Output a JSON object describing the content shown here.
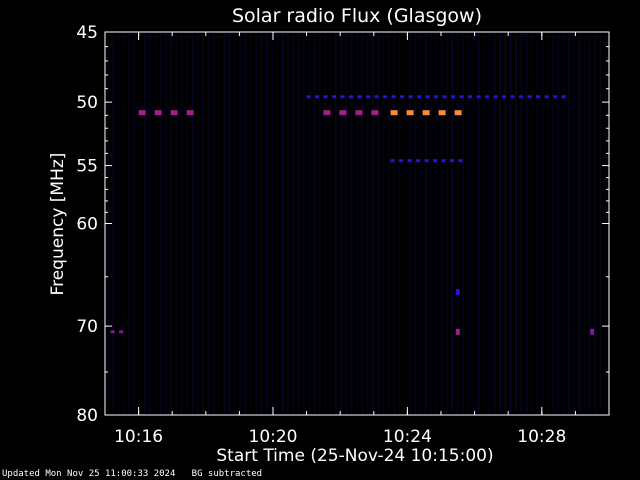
{
  "chart_data": {
    "type": "heatmap",
    "title": "Solar radio Flux (Glasgow)",
    "xlabel": "Start Time (25-Nov-24 10:15:00)",
    "ylabel": "Frequency [MHz]",
    "x_range": [
      "10:15:00",
      "10:30:00"
    ],
    "x_ticks": [
      "10:16",
      "10:20",
      "10:24",
      "10:28"
    ],
    "ylim": [
      45,
      80
    ],
    "y_scale": "log",
    "y_ticks": [
      45,
      50,
      55,
      60,
      70,
      80
    ],
    "features": [
      {
        "freq_mhz": 50.8,
        "start": "10:16:00",
        "end": "10:17:40",
        "level": "high"
      },
      {
        "freq_mhz": 50.8,
        "start": "10:21:30",
        "end": "10:23:20",
        "level": "high"
      },
      {
        "freq_mhz": 50.8,
        "start": "10:23:30",
        "end": "10:25:40",
        "level": "max"
      },
      {
        "freq_mhz": 49.6,
        "start": "10:21:00",
        "end": "10:28:45",
        "level": "low"
      },
      {
        "freq_mhz": 54.6,
        "start": "10:23:30",
        "end": "10:25:40",
        "level": "low"
      },
      {
        "freq_mhz": 70.6,
        "start": "10:15:10",
        "end": "10:15:40",
        "level": "medium"
      },
      {
        "freq_mhz": 70.6,
        "start": "10:25:30",
        "end": "10:25:35",
        "level": "high"
      },
      {
        "freq_mhz": 70.6,
        "start": "10:29:30",
        "end": "10:29:35",
        "level": "medium"
      },
      {
        "freq_mhz": 66.5,
        "start": "10:25:30",
        "end": "10:25:35",
        "level": "low"
      }
    ],
    "colors": {
      "background": "#000000",
      "noise": "#080838",
      "low": "#3010d0",
      "medium": "#7a1a90",
      "high": "#a0208a",
      "max": "#ff8c3a"
    }
  },
  "footer": {
    "updated": "Updated Mon Nov 25 11:00:33 2024",
    "note": "BG subtracted"
  }
}
